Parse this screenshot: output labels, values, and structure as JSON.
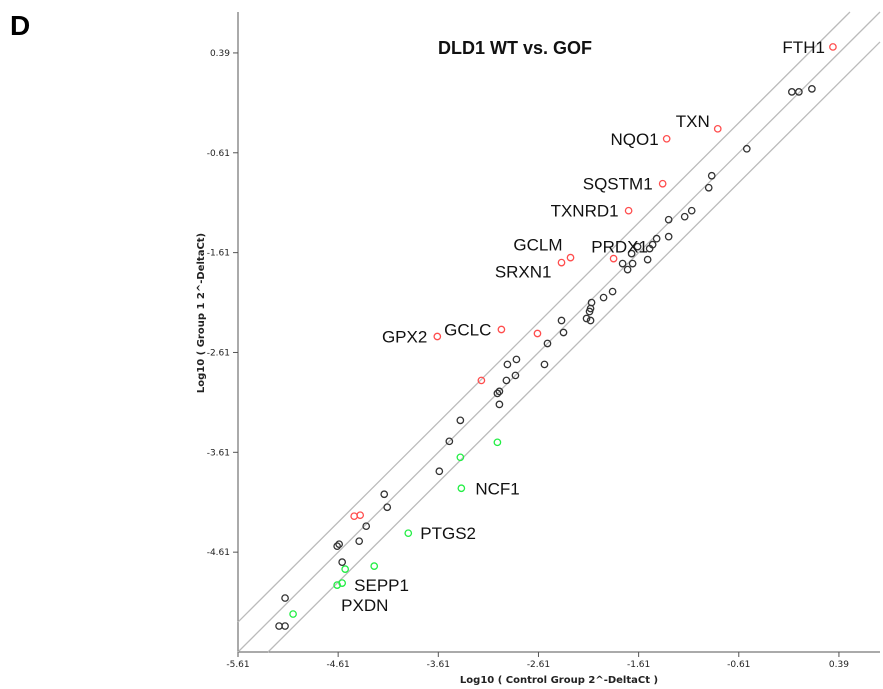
{
  "panel_letter": "D",
  "chart_data": {
    "type": "scatter",
    "title": "DLD1 WT vs. GOF",
    "xlabel": "Log10 ( Control Group 2^-DeltaCt )",
    "ylabel": "Log10 ( Group 1 2^-DeltaCt)",
    "xlim": [
      -5.61,
      0.8
    ],
    "ylim": [
      -5.61,
      0.8
    ],
    "xticks": [
      -5.61,
      -4.61,
      -3.61,
      -2.61,
      -1.61,
      -0.61,
      0.39
    ],
    "yticks": [
      -4.61,
      -3.61,
      -2.61,
      -1.61,
      -0.61,
      0.39
    ],
    "xtick_labels": [
      "-5.61",
      "-4.61",
      "-3.61",
      "-2.61",
      "-1.61",
      "-0.61",
      "0.39"
    ],
    "ytick_labels": [
      "-4.61",
      "-3.61",
      "-2.61",
      "-1.61",
      "-0.61",
      "0.39"
    ],
    "grid": false,
    "reference_lines": [
      {
        "slope": 1,
        "intercept": 0
      },
      {
        "slope": 1,
        "intercept": 0.3
      },
      {
        "slope": 1,
        "intercept": -0.3
      }
    ],
    "colors": {
      "unchanged": "#333333",
      "up": "#ff4d4d",
      "down": "#22ee44",
      "ref_line": "#bbbbbb"
    },
    "series": [
      {
        "status": "up",
        "points": [
          {
            "x": 0.33,
            "y": 0.45,
            "label": "FTH1"
          },
          {
            "x": -0.82,
            "y": -0.37,
            "label": "TXN"
          },
          {
            "x": -1.33,
            "y": -0.47,
            "label": "NQO1"
          },
          {
            "x": -1.37,
            "y": -0.92,
            "label": "SQSTM1"
          },
          {
            "x": -1.71,
            "y": -1.19,
            "label": "TXNRD1"
          },
          {
            "x": -2.29,
            "y": -1.66,
            "label": "GCLM"
          },
          {
            "x": -1.86,
            "y": -1.67,
            "label": "PRDX1"
          },
          {
            "x": -2.38,
            "y": -1.71,
            "label": "SRXN1"
          },
          {
            "x": -3.62,
            "y": -2.45,
            "label": "GPX2"
          },
          {
            "x": -2.98,
            "y": -2.38,
            "label": "GCLC"
          },
          {
            "x": -2.62,
            "y": -2.42,
            "label": ""
          },
          {
            "x": -3.18,
            "y": -2.89,
            "label": ""
          },
          {
            "x": -4.45,
            "y": -4.25,
            "label": ""
          },
          {
            "x": -4.39,
            "y": -4.24,
            "label": ""
          }
        ]
      },
      {
        "status": "down",
        "points": [
          {
            "x": -3.02,
            "y": -3.51,
            "label": ""
          },
          {
            "x": -3.39,
            "y": -3.66,
            "label": ""
          },
          {
            "x": -3.38,
            "y": -3.97,
            "label": "NCF1"
          },
          {
            "x": -3.91,
            "y": -4.42,
            "label": "PTGS2"
          },
          {
            "x": -4.25,
            "y": -4.75,
            "label": ""
          },
          {
            "x": -4.54,
            "y": -4.78,
            "label": ""
          },
          {
            "x": -4.57,
            "y": -4.92,
            "label": "SEPP1"
          },
          {
            "x": -4.62,
            "y": -4.94,
            "label": "PXDN"
          },
          {
            "x": -5.06,
            "y": -5.23,
            "label": ""
          }
        ]
      },
      {
        "status": "unchanged",
        "points": [
          {
            "x": 0.12,
            "y": 0.03
          },
          {
            "x": -0.01,
            "y": 0.0
          },
          {
            "x": -0.08,
            "y": 0.0
          },
          {
            "x": -0.53,
            "y": -0.57
          },
          {
            "x": -0.88,
            "y": -0.84
          },
          {
            "x": -0.91,
            "y": -0.96
          },
          {
            "x": -1.08,
            "y": -1.19
          },
          {
            "x": -1.15,
            "y": -1.25
          },
          {
            "x": -1.31,
            "y": -1.28
          },
          {
            "x": -1.31,
            "y": -1.45
          },
          {
            "x": -1.43,
            "y": -1.47
          },
          {
            "x": -1.47,
            "y": -1.53
          },
          {
            "x": -1.5,
            "y": -1.57
          },
          {
            "x": -1.62,
            "y": -1.55
          },
          {
            "x": -1.68,
            "y": -1.62
          },
          {
            "x": -1.52,
            "y": -1.68
          },
          {
            "x": -1.67,
            "y": -1.72
          },
          {
            "x": -1.72,
            "y": -1.78
          },
          {
            "x": -1.77,
            "y": -1.72
          },
          {
            "x": -1.87,
            "y": -2.0
          },
          {
            "x": -1.96,
            "y": -2.06
          },
          {
            "x": -2.08,
            "y": -2.11
          },
          {
            "x": -2.09,
            "y": -2.17
          },
          {
            "x": -2.1,
            "y": -2.2
          },
          {
            "x": -2.13,
            "y": -2.27
          },
          {
            "x": -2.09,
            "y": -2.29
          },
          {
            "x": -2.38,
            "y": -2.29
          },
          {
            "x": -2.36,
            "y": -2.41
          },
          {
            "x": -2.52,
            "y": -2.52
          },
          {
            "x": -2.55,
            "y": -2.73
          },
          {
            "x": -2.83,
            "y": -2.68
          },
          {
            "x": -2.92,
            "y": -2.73
          },
          {
            "x": -2.84,
            "y": -2.84
          },
          {
            "x": -2.93,
            "y": -2.89
          },
          {
            "x": -3.0,
            "y": -3.0
          },
          {
            "x": -3.02,
            "y": -3.02
          },
          {
            "x": -3.0,
            "y": -3.13
          },
          {
            "x": -3.39,
            "y": -3.29
          },
          {
            "x": -3.5,
            "y": -3.5
          },
          {
            "x": -3.6,
            "y": -3.8
          },
          {
            "x": -4.15,
            "y": -4.03
          },
          {
            "x": -4.12,
            "y": -4.16
          },
          {
            "x": -4.33,
            "y": -4.35
          },
          {
            "x": -4.4,
            "y": -4.5
          },
          {
            "x": -4.6,
            "y": -4.53
          },
          {
            "x": -4.62,
            "y": -4.55
          },
          {
            "x": -4.57,
            "y": -4.71
          },
          {
            "x": -5.14,
            "y": -5.07
          },
          {
            "x": -5.14,
            "y": -5.35
          },
          {
            "x": -5.2,
            "y": -5.35
          }
        ]
      }
    ]
  }
}
